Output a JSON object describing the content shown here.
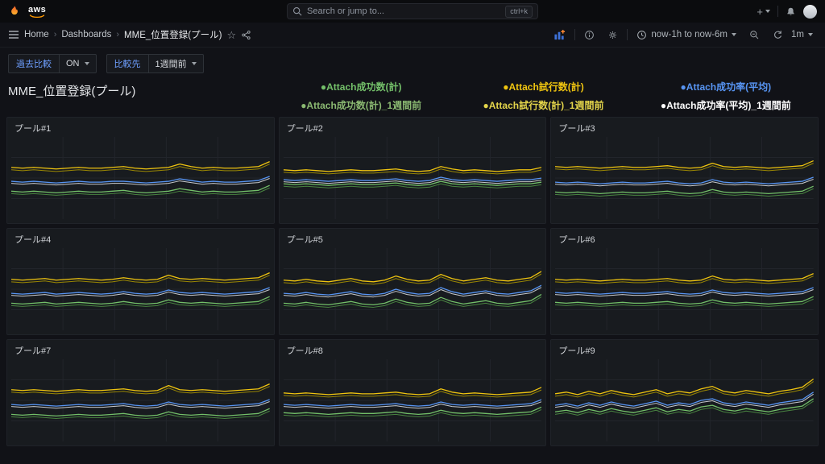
{
  "topnav": {
    "brand": "aws",
    "add_label": "+",
    "search": {
      "placeholder": "Search or jump to...",
      "shortcut": "ctrl+k"
    }
  },
  "breadcrumbs": {
    "separator": "›",
    "items": [
      "Home",
      "Dashboards",
      "MME_位置登録(プール)"
    ],
    "star_icon": "☆"
  },
  "toolbar": {
    "time_range": "now-1h to now-6m",
    "refresh_interval": "1m"
  },
  "controls": {
    "compare_label": "過去比較",
    "compare_value": "ON",
    "target_label": "比較先",
    "target_value": "1週間前"
  },
  "page": {
    "title": "MME_位置登録(プール)"
  },
  "legend": {
    "row1": [
      {
        "label": "●Attach成功数(計)",
        "color": "#73BF69"
      },
      {
        "label": "●Attach試行数(計)",
        "color": "#EFC410"
      },
      {
        "label": "●Attach成功率(平均)",
        "color": "#5794F2"
      }
    ],
    "row2": [
      {
        "label": "●Attach成功数(計)_1週間前",
        "color": "#8AB871"
      },
      {
        "label": "●Attach試行数(計)_1週間前",
        "color": "#E3D44A"
      },
      {
        "label": "●Attach成功率(平均)_1週間前",
        "color": "#FFFFFF"
      }
    ]
  },
  "chart_data": {
    "type": "line",
    "x_axis": "time (no tick labels visible at this scale)",
    "y_axis": "normalized panel height 0-100 (no tick labels visible)",
    "grid": true,
    "legend_position": "above panel grid",
    "series_defs": [
      {
        "id": "attach-success-prev",
        "name": "Attach成功数(計)_1週間前",
        "key": "green",
        "color": "#4E8F44",
        "offset": -3,
        "width": 1,
        "opacity": 0.9
      },
      {
        "id": "attach-trials-prev",
        "name": "Attach試行数(計)_1週間前",
        "key": "yellow",
        "color": "#A89200",
        "offset": -3,
        "width": 1,
        "opacity": 0.9
      },
      {
        "id": "attach-rate-prev",
        "name": "Attach成功率(平均)_1週間前",
        "key": "blue",
        "color": "#E6E8EB",
        "offset": -2.5,
        "width": 1,
        "opacity": 0.85
      },
      {
        "id": "attach-success",
        "name": "Attach成功数(計)",
        "key": "green",
        "color": "#73BF69",
        "offset": 0,
        "width": 1.3,
        "opacity": 1
      },
      {
        "id": "attach-trials",
        "name": "Attach試行数(計)",
        "key": "yellow",
        "color": "#EFC410",
        "offset": 0,
        "width": 1.3,
        "opacity": 1
      },
      {
        "id": "attach-rate",
        "name": "Attach成功率(平均)",
        "key": "blue",
        "color": "#5794F2",
        "offset": 0,
        "width": 1.3,
        "opacity": 1
      }
    ],
    "panels": [
      {
        "title": "プール#1",
        "values": {
          "yellow": [
            63,
            62,
            63,
            62,
            61,
            62,
            63,
            62,
            62,
            63,
            64,
            62,
            61,
            62,
            63,
            67,
            64,
            62,
            63,
            62,
            62,
            63,
            64,
            70
          ],
          "blue": [
            46,
            45,
            46,
            45,
            44,
            45,
            46,
            45,
            45,
            46,
            46,
            45,
            44,
            45,
            46,
            49,
            47,
            45,
            46,
            45,
            45,
            46,
            47,
            52
          ],
          "green": [
            34,
            33,
            34,
            33,
            32,
            33,
            34,
            33,
            33,
            34,
            35,
            33,
            32,
            33,
            34,
            37,
            35,
            33,
            34,
            33,
            33,
            34,
            35,
            41
          ]
        }
      },
      {
        "title": "プール#2",
        "values": {
          "yellow": [
            60,
            59,
            60,
            59,
            58,
            59,
            60,
            59,
            59,
            60,
            61,
            59,
            58,
            59,
            64,
            61,
            59,
            60,
            59,
            58,
            59,
            60,
            60,
            63
          ],
          "blue": [
            48,
            47,
            48,
            47,
            46,
            47,
            48,
            47,
            47,
            48,
            49,
            47,
            46,
            47,
            51,
            48,
            47,
            48,
            47,
            46,
            47,
            48,
            48,
            50
          ],
          "green": [
            43,
            42,
            43,
            42,
            41,
            42,
            43,
            42,
            42,
            43,
            44,
            42,
            41,
            42,
            46,
            43,
            42,
            43,
            42,
            41,
            42,
            43,
            43,
            45
          ]
        }
      },
      {
        "title": "プール#3",
        "values": {
          "yellow": [
            64,
            63,
            64,
            63,
            62,
            63,
            64,
            63,
            63,
            64,
            65,
            63,
            62,
            63,
            68,
            64,
            63,
            64,
            63,
            62,
            63,
            64,
            65,
            71
          ],
          "blue": [
            45,
            44,
            45,
            44,
            43,
            44,
            45,
            44,
            44,
            45,
            46,
            44,
            43,
            44,
            48,
            45,
            44,
            45,
            44,
            43,
            44,
            45,
            46,
            51
          ],
          "green": [
            33,
            32,
            33,
            32,
            31,
            32,
            33,
            32,
            32,
            33,
            34,
            32,
            31,
            32,
            36,
            33,
            32,
            33,
            32,
            31,
            32,
            33,
            34,
            40
          ]
        }
      },
      {
        "title": "プール#4",
        "values": {
          "yellow": [
            62,
            61,
            62,
            63,
            61,
            62,
            63,
            62,
            61,
            62,
            64,
            62,
            61,
            62,
            67,
            63,
            62,
            63,
            62,
            61,
            62,
            63,
            64,
            70
          ],
          "blue": [
            45,
            44,
            45,
            46,
            44,
            45,
            46,
            45,
            44,
            45,
            47,
            45,
            44,
            45,
            49,
            46,
            45,
            46,
            45,
            44,
            45,
            46,
            47,
            52
          ],
          "green": [
            33,
            32,
            33,
            34,
            32,
            33,
            34,
            33,
            32,
            33,
            35,
            33,
            32,
            33,
            37,
            34,
            33,
            34,
            33,
            32,
            33,
            34,
            35,
            41
          ]
        }
      },
      {
        "title": "プール#5",
        "values": {
          "yellow": [
            61,
            60,
            62,
            60,
            59,
            61,
            63,
            60,
            59,
            61,
            66,
            62,
            60,
            61,
            68,
            63,
            60,
            62,
            64,
            61,
            60,
            62,
            64,
            72
          ],
          "blue": [
            45,
            44,
            46,
            44,
            43,
            45,
            47,
            44,
            43,
            45,
            50,
            46,
            44,
            45,
            52,
            47,
            44,
            46,
            48,
            45,
            44,
            46,
            48,
            55
          ],
          "green": [
            33,
            32,
            34,
            32,
            31,
            33,
            35,
            32,
            31,
            33,
            38,
            34,
            32,
            33,
            40,
            35,
            32,
            34,
            36,
            33,
            32,
            34,
            36,
            44
          ]
        }
      },
      {
        "title": "プール#6",
        "values": {
          "yellow": [
            62,
            61,
            62,
            61,
            60,
            61,
            62,
            61,
            61,
            62,
            63,
            61,
            60,
            61,
            66,
            62,
            61,
            62,
            61,
            60,
            61,
            62,
            63,
            69
          ],
          "blue": [
            46,
            45,
            46,
            45,
            44,
            45,
            46,
            45,
            45,
            46,
            47,
            45,
            44,
            45,
            49,
            46,
            45,
            46,
            45,
            44,
            45,
            46,
            47,
            52
          ],
          "green": [
            34,
            33,
            34,
            33,
            32,
            33,
            34,
            33,
            33,
            34,
            35,
            33,
            32,
            33,
            37,
            34,
            33,
            34,
            33,
            32,
            33,
            34,
            35,
            41
          ]
        }
      },
      {
        "title": "プール#7",
        "values": {
          "yellow": [
            63,
            62,
            63,
            62,
            61,
            62,
            63,
            62,
            62,
            63,
            64,
            62,
            61,
            62,
            68,
            63,
            62,
            63,
            62,
            61,
            62,
            63,
            64,
            70
          ],
          "blue": [
            45,
            44,
            45,
            44,
            43,
            44,
            45,
            44,
            44,
            45,
            46,
            44,
            43,
            44,
            48,
            45,
            44,
            45,
            44,
            43,
            44,
            45,
            46,
            51
          ],
          "green": [
            33,
            32,
            33,
            32,
            31,
            32,
            33,
            32,
            32,
            33,
            34,
            32,
            31,
            32,
            36,
            33,
            32,
            33,
            32,
            31,
            32,
            33,
            34,
            40
          ]
        }
      },
      {
        "title": "プール#8",
        "values": {
          "yellow": [
            59,
            58,
            59,
            58,
            57,
            58,
            59,
            58,
            58,
            59,
            60,
            58,
            57,
            58,
            64,
            60,
            58,
            59,
            58,
            57,
            58,
            59,
            60,
            66
          ],
          "blue": [
            45,
            44,
            45,
            44,
            43,
            44,
            45,
            44,
            44,
            45,
            46,
            44,
            43,
            44,
            48,
            45,
            44,
            45,
            44,
            43,
            44,
            45,
            46,
            51
          ],
          "green": [
            35,
            34,
            35,
            34,
            33,
            34,
            35,
            34,
            34,
            35,
            36,
            34,
            33,
            34,
            38,
            35,
            34,
            35,
            34,
            33,
            34,
            35,
            36,
            42
          ]
        }
      },
      {
        "title": "プール#9",
        "values": {
          "yellow": [
            58,
            60,
            57,
            61,
            58,
            62,
            59,
            57,
            60,
            63,
            58,
            61,
            59,
            64,
            67,
            61,
            59,
            62,
            60,
            58,
            61,
            63,
            66,
            76
          ],
          "blue": [
            44,
            46,
            43,
            47,
            44,
            48,
            45,
            43,
            46,
            49,
            44,
            47,
            45,
            50,
            52,
            47,
            45,
            48,
            46,
            44,
            47,
            49,
            51,
            60
          ],
          "green": [
            36,
            38,
            35,
            39,
            36,
            40,
            37,
            35,
            38,
            41,
            36,
            39,
            37,
            42,
            44,
            39,
            37,
            40,
            38,
            36,
            39,
            41,
            43,
            52
          ]
        }
      }
    ]
  }
}
